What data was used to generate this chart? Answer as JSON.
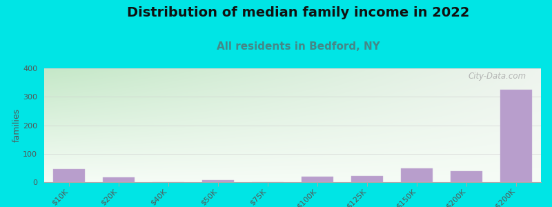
{
  "title": "Distribution of median family income in 2022",
  "subtitle": "All residents in Bedford, NY",
  "ylabel": "families",
  "categories": [
    "$10K",
    "$20K",
    "$40K",
    "$50K",
    "$75K",
    "$100K",
    "$125K",
    "$150K",
    "$200K",
    "> $200K"
  ],
  "values": [
    45,
    18,
    0,
    8,
    0,
    20,
    22,
    48,
    38,
    325
  ],
  "bar_color": "#b89ecc",
  "bar_edge_color": "#c8b4d8",
  "background_color": "#00e5e5",
  "plot_bg_top_left": "#c5e8c8",
  "plot_bg_top_right": "#e8f0e8",
  "plot_bg_bottom": "#f0f8f0",
  "grid_color": "#cccccc",
  "title_color": "#111111",
  "subtitle_color": "#448888",
  "ylabel_color": "#555555",
  "tick_color": "#555555",
  "watermark_text": "City-Data.com",
  "watermark_color": "#aaaaaa",
  "ylim": [
    0,
    400
  ],
  "yticks": [
    0,
    100,
    200,
    300,
    400
  ],
  "title_fontsize": 14,
  "subtitle_fontsize": 11,
  "ylabel_fontsize": 9,
  "tick_fontsize": 8
}
